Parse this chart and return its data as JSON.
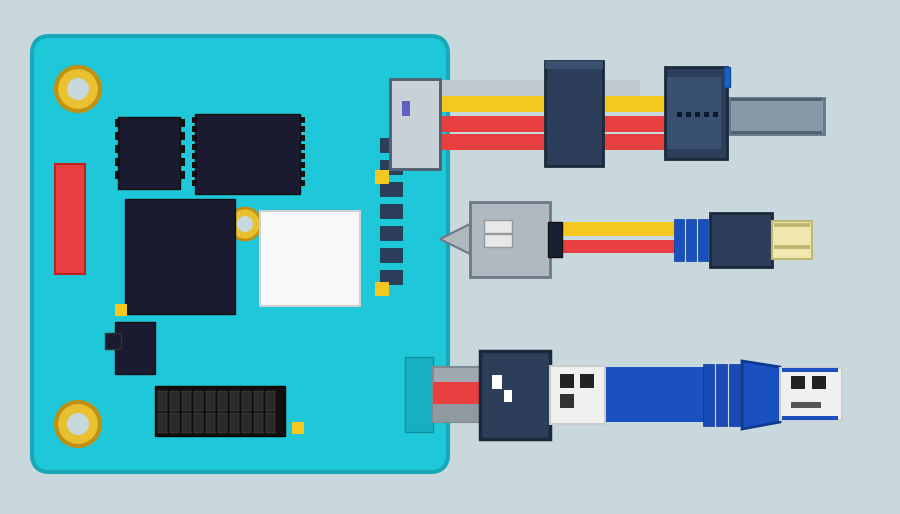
{
  "bg_color": "#c8d8dc",
  "board_color": "#1ec8d8",
  "board_outline": "#18a8b8",
  "hole_color": "#e8c030",
  "hole_outline": "#c09010",
  "chip_dark": "#1a1a30",
  "red_comp": "#e84040",
  "connector_dark": "#2c3e5a",
  "connector_mid": "#3a5070",
  "wire_red": "#e84040",
  "wire_yellow": "#f5c820",
  "wire_gray": "#a0a8b0",
  "wire_blue": "#1a50c0",
  "plug_gray": "#8898a8",
  "plug_light": "#b0b8c0",
  "usb_white": "#f0f0f0",
  "cream": "#f0e8b0",
  "dark_navy": "#1a2a40"
}
